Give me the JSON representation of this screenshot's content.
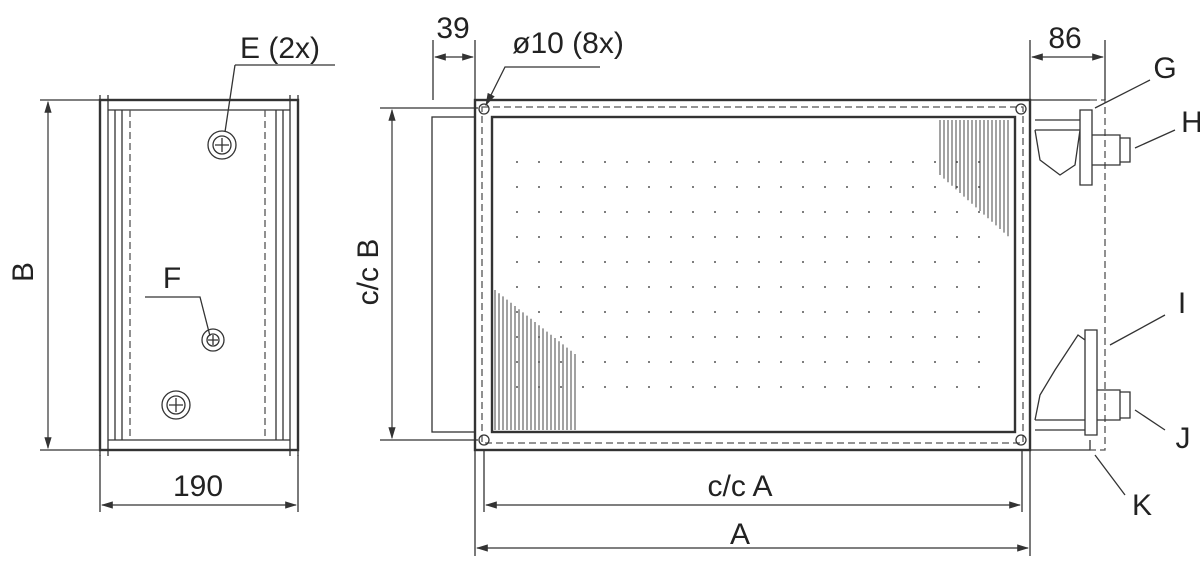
{
  "labels": {
    "e": "E (2x)",
    "f": "F",
    "b": "B",
    "w190": "190",
    "w39": "39",
    "hole": "ø10 (8x)",
    "w86": "86",
    "ccb": "c/c B",
    "g": "G",
    "h": "H",
    "i": "I",
    "j": "J",
    "k": "K",
    "cca": "c/c A",
    "a": "A"
  }
}
